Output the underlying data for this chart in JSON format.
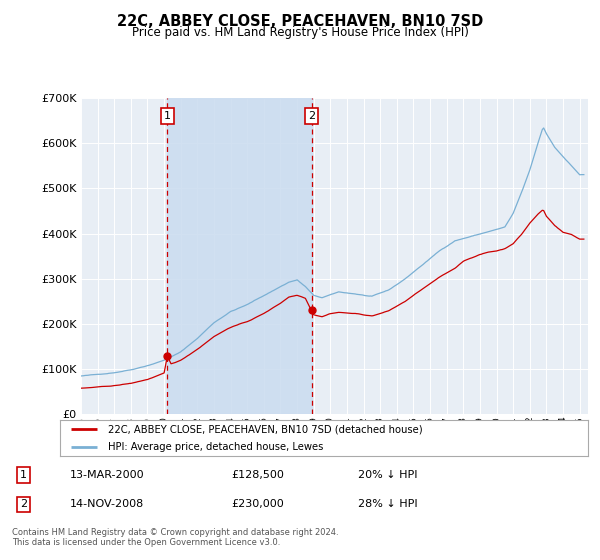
{
  "title": "22C, ABBEY CLOSE, PEACEHAVEN, BN10 7SD",
  "subtitle": "Price paid vs. HM Land Registry's House Price Index (HPI)",
  "legend_line1": "22C, ABBEY CLOSE, PEACEHAVEN, BN10 7SD (detached house)",
  "legend_line2": "HPI: Average price, detached house, Lewes",
  "footer": "Contains HM Land Registry data © Crown copyright and database right 2024.\nThis data is licensed under the Open Government Licence v3.0.",
  "transaction1_date": "13-MAR-2000",
  "transaction1_price": "£128,500",
  "transaction1_hpi": "20% ↓ HPI",
  "transaction1_year": 2000.2,
  "transaction1_value": 128500,
  "transaction2_date": "14-NOV-2008",
  "transaction2_price": "£230,000",
  "transaction2_hpi": "28% ↓ HPI",
  "transaction2_year": 2008.87,
  "transaction2_value": 230000,
  "ylim": [
    0,
    700000
  ],
  "xlim_start": 1995.0,
  "xlim_end": 2025.5,
  "bg_color": "#e8eef5",
  "red_color": "#cc0000",
  "blue_color": "#7ab0d4",
  "shade_color": "#ccddf0"
}
